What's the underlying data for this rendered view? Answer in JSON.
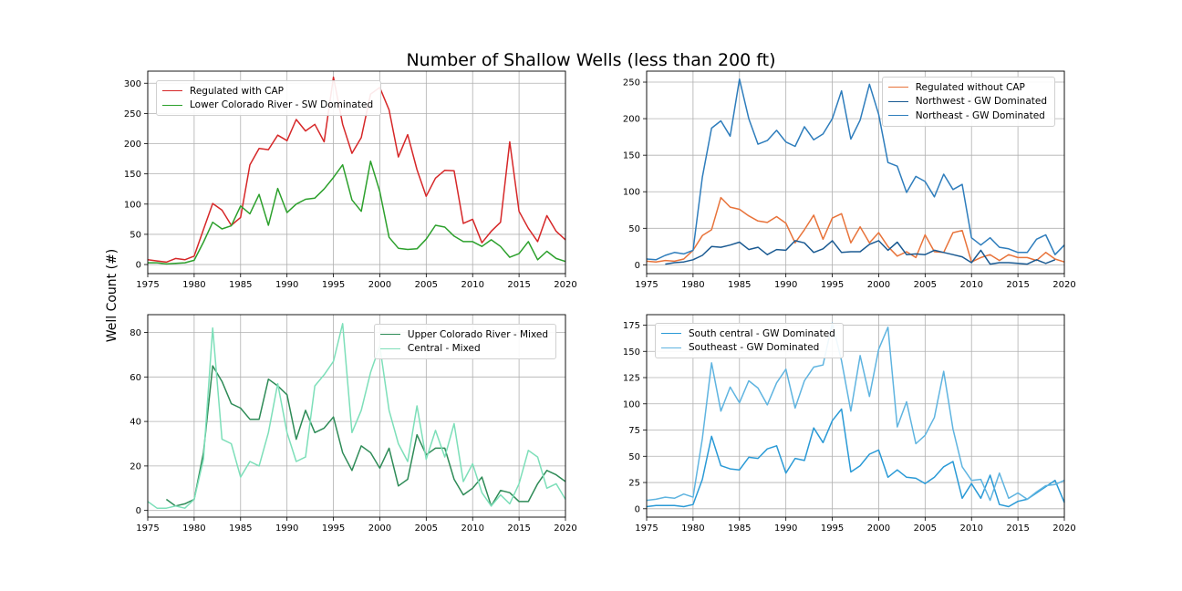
{
  "figure": {
    "title": "Number of Shallow Wells (less than 200 ft)",
    "ylabel": "Well Count (#)"
  },
  "chart_data": [
    {
      "type": "line",
      "xlim": [
        1975,
        2020
      ],
      "ylim": [
        -15,
        320
      ],
      "xticks": [
        1975,
        1980,
        1985,
        1990,
        1995,
        2000,
        2005,
        2010,
        2015,
        2020
      ],
      "yticks": [
        0,
        50,
        100,
        150,
        200,
        250,
        300
      ],
      "grid": true,
      "legend_loc": "upper-left",
      "series": [
        {
          "name": "Regulated with CAP",
          "color": "#d62728",
          "start": 1975,
          "values": [
            8,
            6,
            4,
            10,
            8,
            14,
            58,
            101,
            90,
            65,
            78,
            165,
            192,
            190,
            214,
            205,
            240,
            221,
            232,
            203,
            310,
            232,
            184,
            210,
            282,
            293,
            256,
            178,
            215,
            157,
            113,
            143,
            156,
            155,
            68,
            75,
            36,
            55,
            70,
            203,
            88,
            60,
            38,
            81,
            55,
            41
          ]
        },
        {
          "name": "Lower Colorado River - SW Dominated",
          "color": "#2ca02c",
          "start": 1975,
          "values": [
            3,
            3,
            1,
            2,
            3,
            7,
            37,
            70,
            59,
            64,
            97,
            84,
            116,
            65,
            126,
            86,
            100,
            108,
            110,
            125,
            144,
            165,
            107,
            88,
            171,
            121,
            45,
            27,
            25,
            26,
            42,
            65,
            62,
            47,
            38,
            38,
            30,
            41,
            30,
            12,
            18,
            38,
            8,
            22,
            10,
            5
          ]
        }
      ]
    },
    {
      "type": "line",
      "xlim": [
        1975,
        2020
      ],
      "ylim": [
        -12,
        265
      ],
      "xticks": [
        1975,
        1980,
        1985,
        1990,
        1995,
        2000,
        2005,
        2010,
        2015,
        2020
      ],
      "yticks": [
        0,
        50,
        100,
        150,
        200,
        250
      ],
      "grid": true,
      "legend_loc": "upper-right",
      "series": [
        {
          "name": "Regulated without CAP",
          "color": "#e8733a",
          "start": 1975,
          "values": [
            5,
            4,
            6,
            5,
            8,
            20,
            40,
            48,
            92,
            79,
            76,
            67,
            60,
            58,
            66,
            57,
            30,
            48,
            68,
            35,
            64,
            70,
            30,
            52,
            30,
            44,
            25,
            12,
            18,
            10,
            41,
            18,
            17,
            44,
            47,
            4,
            10,
            14,
            6,
            14,
            10,
            10,
            6,
            17,
            8,
            4
          ]
        },
        {
          "name": "Northwest - GW Dominated",
          "color": "#1a5a92",
          "start": 1977,
          "values": [
            1,
            3,
            4,
            7,
            13,
            25,
            24,
            27,
            31,
            21,
            24,
            14,
            21,
            20,
            33,
            30,
            17,
            22,
            33,
            17,
            18,
            18,
            28,
            33,
            20,
            31,
            14,
            15,
            14,
            20,
            17,
            14,
            11,
            3,
            20,
            1,
            3,
            3,
            2,
            1,
            7,
            2,
            7
          ]
        },
        {
          "name": "Northeast - GW Dominated",
          "color": "#2e7dbc",
          "start": 1975,
          "values": [
            8,
            7,
            13,
            17,
            15,
            20,
            120,
            187,
            197,
            176,
            254,
            200,
            165,
            170,
            184,
            168,
            162,
            189,
            171,
            179,
            200,
            238,
            172,
            198,
            247,
            206,
            140,
            135,
            99,
            121,
            114,
            93,
            124,
            103,
            110,
            37,
            27,
            37,
            24,
            22,
            17,
            17,
            35,
            41,
            14,
            27
          ]
        }
      ]
    },
    {
      "type": "line",
      "xlim": [
        1975,
        2020
      ],
      "ylim": [
        -3,
        88
      ],
      "xticks": [
        1975,
        1980,
        1985,
        1990,
        1995,
        2000,
        2005,
        2010,
        2015,
        2020
      ],
      "yticks": [
        0,
        20,
        40,
        60,
        80
      ],
      "grid": true,
      "legend_loc": "upper-right",
      "series": [
        {
          "name": "Upper Colorado River - Mixed",
          "color": "#2e8b57",
          "start": 1977,
          "values": [
            5,
            2,
            3,
            5,
            26,
            65,
            58,
            48,
            46,
            41,
            41,
            59,
            56,
            52,
            32,
            45,
            35,
            37,
            42,
            26,
            18,
            29,
            26,
            19,
            28,
            11,
            14,
            34,
            25,
            28,
            28,
            14,
            7,
            10,
            15,
            2,
            9,
            8,
            4,
            4,
            12,
            18,
            16,
            13
          ]
        },
        {
          "name": "Central - Mixed",
          "color": "#7ddfb9",
          "start": 1975,
          "values": [
            4,
            1,
            1,
            2,
            1,
            5,
            23,
            82,
            32,
            30,
            15,
            22,
            20,
            35,
            57,
            35,
            22,
            24,
            56,
            61,
            67,
            84,
            35,
            45,
            62,
            74,
            45,
            30,
            22,
            47,
            23,
            36,
            24,
            39,
            13,
            21,
            8,
            2,
            7,
            3,
            12,
            27,
            24,
            10,
            12,
            5
          ]
        }
      ]
    },
    {
      "type": "line",
      "xlim": [
        1975,
        2020
      ],
      "ylim": [
        -8,
        185
      ],
      "xticks": [
        1975,
        1980,
        1985,
        1990,
        1995,
        2000,
        2005,
        2010,
        2015,
        2020
      ],
      "yticks": [
        0,
        25,
        50,
        75,
        100,
        125,
        150,
        175
      ],
      "grid": true,
      "legend_loc": "upper-left",
      "series": [
        {
          "name": "South central - GW Dominated",
          "color": "#2a9ad6",
          "start": 1975,
          "values": [
            2,
            3,
            3,
            3,
            2,
            4,
            28,
            69,
            41,
            38,
            37,
            49,
            48,
            57,
            60,
            34,
            48,
            46,
            77,
            63,
            84,
            95,
            35,
            41,
            52,
            56,
            30,
            37,
            30,
            29,
            24,
            30,
            40,
            45,
            10,
            24,
            10,
            32,
            4,
            2,
            7,
            9,
            15,
            21,
            27,
            6
          ]
        },
        {
          "name": "Southeast - GW Dominated",
          "color": "#5fb4e0",
          "start": 1975,
          "values": [
            8,
            9,
            11,
            10,
            14,
            11,
            67,
            139,
            93,
            116,
            101,
            122,
            115,
            99,
            120,
            133,
            96,
            122,
            135,
            137,
            177,
            141,
            93,
            146,
            107,
            152,
            173,
            78,
            102,
            62,
            70,
            87,
            131,
            76,
            40,
            27,
            28,
            8,
            34,
            10,
            15,
            9,
            16,
            22,
            23,
            27
          ]
        }
      ]
    }
  ]
}
